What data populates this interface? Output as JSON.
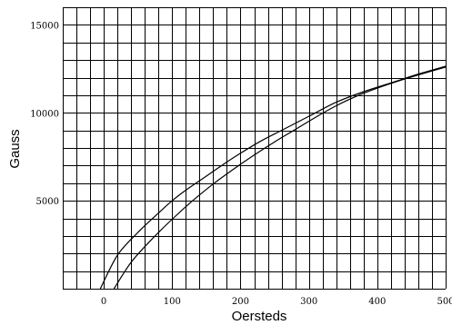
{
  "chart_data": {
    "type": "line",
    "title": "",
    "xlabel": "Oersteds",
    "ylabel": "Gauss",
    "xlim": [
      -60,
      500
    ],
    "ylim": [
      0,
      16000
    ],
    "x_ticks": [
      0,
      100,
      200,
      300,
      400,
      500
    ],
    "x_tick_labels": [
      "0",
      "100",
      "200",
      "300",
      "400",
      "500"
    ],
    "y_ticks": [
      5000,
      10000,
      15000
    ],
    "y_tick_labels": [
      "5000",
      "10000",
      "15000"
    ],
    "grid": true,
    "grid_step_x": 20,
    "grid_step_y": 1000,
    "series": [
      {
        "x": [
          -5,
          20,
          50,
          80,
          100,
          120,
          150,
          180,
          200,
          230,
          260,
          300,
          340,
          380,
          420,
          460,
          500
        ],
        "y": [
          0,
          1900,
          3200,
          4300,
          5000,
          5600,
          6400,
          7200,
          7700,
          8400,
          9000,
          9800,
          10600,
          11200,
          11700,
          12200,
          12650
        ]
      },
      {
        "x": [
          15,
          40,
          70,
          100,
          130,
          160,
          190,
          220,
          250,
          280,
          310,
          340,
          370,
          400,
          430,
          460,
          500
        ],
        "y": [
          0,
          1500,
          2800,
          3950,
          5000,
          5950,
          6800,
          7600,
          8350,
          9050,
          9750,
          10400,
          10950,
          11400,
          11800,
          12150,
          12600
        ]
      }
    ]
  }
}
